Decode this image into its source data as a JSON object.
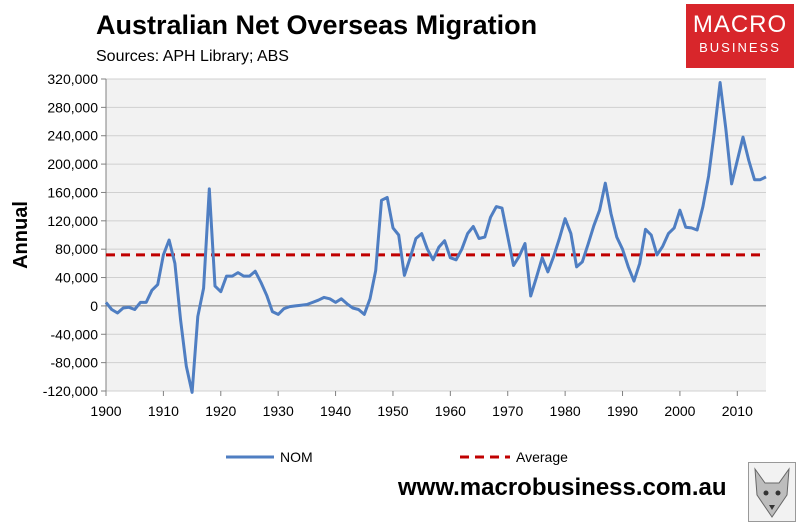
{
  "header": {
    "title": "Australian Net Overseas Migration",
    "subtitle": "Sources: APH Library; ABS"
  },
  "logo": {
    "line1": "MACRO",
    "line2": "BUSINESS",
    "color": "#d8262b"
  },
  "footer": {
    "url": "www.macrobusiness.com.au"
  },
  "colors": {
    "nom": "#4f7ec2",
    "average": "#c00000",
    "plot_bg": "#f2f2f2"
  },
  "chart_data": {
    "type": "line",
    "title": "Australian Net Overseas Migration",
    "ylabel": "Annual",
    "xlabel": "",
    "ylim": [
      -120000,
      320000
    ],
    "xlim": [
      1900,
      2015
    ],
    "y_ticks": [
      -120000,
      -80000,
      -40000,
      0,
      40000,
      80000,
      120000,
      160000,
      200000,
      240000,
      280000,
      320000
    ],
    "y_tick_labels": [
      "-120,000",
      "-80,000",
      "-40,000",
      "0",
      "40,000",
      "80,000",
      "120,000",
      "160,000",
      "200,000",
      "240,000",
      "280,000",
      "320,000"
    ],
    "x_ticks": [
      1900,
      1910,
      1920,
      1930,
      1940,
      1950,
      1960,
      1970,
      1980,
      1990,
      2000,
      2010
    ],
    "x_tick_labels": [
      "1900",
      "1910",
      "1920",
      "1930",
      "1940",
      "1950",
      "1960",
      "1970",
      "1980",
      "1990",
      "2000",
      "2010"
    ],
    "grid": "horizontal",
    "legend": "bottom",
    "series": [
      {
        "name": "NOM",
        "style": "solid",
        "x": [
          1900,
          1901,
          1902,
          1903,
          1904,
          1905,
          1906,
          1907,
          1908,
          1909,
          1910,
          1911,
          1912,
          1913,
          1914,
          1915,
          1916,
          1917,
          1918,
          1919,
          1920,
          1921,
          1922,
          1923,
          1924,
          1925,
          1926,
          1927,
          1928,
          1929,
          1930,
          1931,
          1932,
          1933,
          1934,
          1935,
          1936,
          1937,
          1938,
          1939,
          1940,
          1941,
          1942,
          1943,
          1944,
          1945,
          1946,
          1947,
          1948,
          1949,
          1950,
          1951,
          1952,
          1953,
          1954,
          1955,
          1956,
          1957,
          1958,
          1959,
          1960,
          1961,
          1962,
          1963,
          1964,
          1965,
          1966,
          1967,
          1968,
          1969,
          1970,
          1971,
          1972,
          1973,
          1974,
          1975,
          1976,
          1977,
          1978,
          1979,
          1980,
          1981,
          1982,
          1983,
          1984,
          1985,
          1986,
          1987,
          1988,
          1989,
          1990,
          1991,
          1992,
          1993,
          1994,
          1995,
          1996,
          1997,
          1998,
          1999,
          2000,
          2001,
          2002,
          2003,
          2004,
          2005,
          2006,
          2007,
          2008,
          2009,
          2010,
          2011,
          2012,
          2013,
          2014,
          2015
        ],
        "values": [
          5000,
          -5000,
          -10000,
          -3000,
          -2000,
          -5000,
          5000,
          5000,
          22000,
          30000,
          72000,
          93000,
          60000,
          -20000,
          -85000,
          -122000,
          -15000,
          25000,
          165000,
          28000,
          20000,
          42000,
          42000,
          47000,
          42000,
          42000,
          49000,
          33000,
          15000,
          -8000,
          -12000,
          -4000,
          -1000,
          0,
          1000,
          2000,
          5000,
          8000,
          12000,
          10000,
          5000,
          10000,
          3000,
          -3000,
          -5000,
          -12000,
          10000,
          50000,
          149000,
          153000,
          110000,
          100000,
          43000,
          68000,
          95000,
          102000,
          80000,
          65000,
          83000,
          92000,
          68000,
          65000,
          80000,
          102000,
          112000,
          95000,
          97000,
          125000,
          140000,
          138000,
          98000,
          57000,
          70000,
          88000,
          14000,
          40000,
          68000,
          48000,
          70000,
          95000,
          123000,
          102000,
          55000,
          62000,
          87000,
          113000,
          135000,
          173000,
          130000,
          97000,
          80000,
          55000,
          35000,
          60000,
          108000,
          100000,
          72000,
          84000,
          102000,
          110000,
          135000,
          111000,
          110000,
          107000,
          140000,
          183000,
          245000,
          315000,
          250000,
          172000,
          205000,
          238000,
          205000,
          178000,
          178000,
          182000
        ]
      },
      {
        "name": "Average",
        "style": "dashed",
        "x": [
          1900,
          2015
        ],
        "values": [
          72000,
          72000
        ]
      }
    ]
  }
}
